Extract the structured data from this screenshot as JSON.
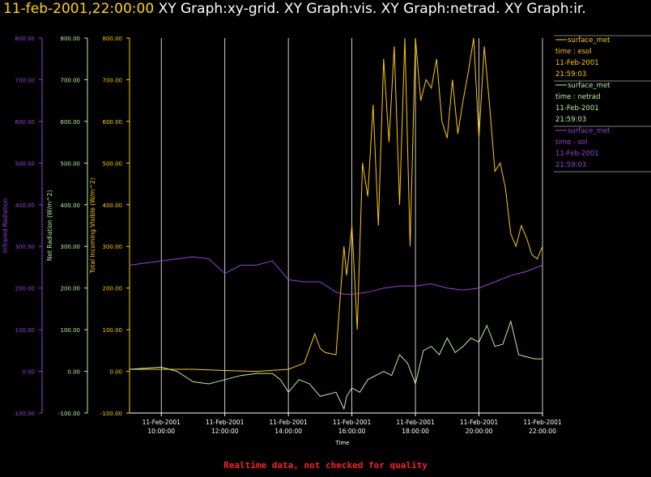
{
  "header": {
    "timestamp": "11-feb-2001,22:00:00",
    "graphs": "XY Graph:xy-grid.  XY Graph:vis.  XY Graph:netrad.  XY Graph:ir."
  },
  "footer": {
    "note": "Realtime data, not checked for quality",
    "color": "#ff2020"
  },
  "colors": {
    "visible": "#ffcc00",
    "netrad": "#b8f0a0",
    "ir": "#9a40e0",
    "grid": "#ffffff"
  },
  "chart_data": {
    "type": "line",
    "title": "",
    "xlabel": "Time",
    "x_range": [
      "11-Feb-2001 09:00:00",
      "11-Feb-2001 22:00:00"
    ],
    "x_ticks": [
      {
        "date": "11-Feb-2001",
        "time": "10:00:00"
      },
      {
        "date": "11-Feb-2001",
        "time": "12:00:00"
      },
      {
        "date": "11-Feb-2001",
        "time": "14:00:00"
      },
      {
        "date": "11-Feb-2001",
        "time": "16:00:00"
      },
      {
        "date": "11-Feb-2001",
        "time": "18:00:00"
      },
      {
        "date": "11-Feb-2001",
        "time": "20:00:00"
      },
      {
        "date": "11-Feb-2001",
        "time": "22:00:00"
      }
    ],
    "axes": [
      {
        "id": "ir",
        "label": "Infrared Radiation",
        "ylim": [
          -100,
          800
        ],
        "ticks": [
          "-100.00",
          "0.00",
          "100.00",
          "200.00",
          "300.00",
          "400.00",
          "500.00",
          "600.00",
          "700.00",
          "800.00"
        ]
      },
      {
        "id": "netrad",
        "label": "Net Radiation (W/m^2)",
        "ylim": [
          -100,
          800
        ],
        "ticks": [
          "-100.00",
          "0.00",
          "100.00",
          "200.00",
          "300.00",
          "400.00",
          "500.00",
          "600.00",
          "700.00",
          "800.00"
        ]
      },
      {
        "id": "visible",
        "label": "Total Incoming Visible (W/m^2)",
        "ylim": [
          -100,
          800
        ],
        "ticks": [
          "-100.00",
          "0.00",
          "100.00",
          "200.00",
          "300.00",
          "400.00",
          "500.00",
          "600.00",
          "700.00",
          "800.00"
        ]
      }
    ],
    "legend": [
      {
        "series": "visible",
        "lines": [
          "surface_met",
          "time : esol",
          "11-Feb-2001",
          "21:59:03"
        ]
      },
      {
        "series": "netrad",
        "lines": [
          "surface_met",
          "time : netrad",
          "11-Feb-2001",
          "21:59:03"
        ]
      },
      {
        "series": "ir",
        "lines": [
          "surface_met",
          "time : sol",
          "11-Feb-2001",
          "21:59:03"
        ]
      }
    ],
    "series": [
      {
        "id": "visible",
        "axis": "visible",
        "x": [
          "09:00",
          "10:00",
          "11:00",
          "12:00",
          "13:00",
          "14:00",
          "14:30",
          "14:50",
          "15:00",
          "15:10",
          "15:30",
          "15:45",
          "15:50",
          "16:00",
          "16:10",
          "16:20",
          "16:30",
          "16:40",
          "16:50",
          "17:00",
          "17:10",
          "17:20",
          "17:30",
          "17:40",
          "17:50",
          "18:00",
          "18:10",
          "18:20",
          "18:30",
          "18:40",
          "18:50",
          "19:00",
          "19:10",
          "19:20",
          "19:30",
          "19:40",
          "19:50",
          "20:00",
          "20:10",
          "20:20",
          "20:30",
          "20:40",
          "20:50",
          "21:00",
          "21:10",
          "21:20",
          "21:30",
          "21:40",
          "21:50",
          "22:00"
        ],
        "y": [
          5,
          5,
          5,
          2,
          0,
          5,
          20,
          90,
          55,
          45,
          40,
          300,
          230,
          350,
          100,
          500,
          420,
          640,
          350,
          750,
          550,
          780,
          400,
          820,
          300,
          830,
          650,
          700,
          680,
          750,
          600,
          560,
          700,
          570,
          650,
          720,
          800,
          560,
          780,
          640,
          480,
          500,
          440,
          330,
          300,
          350,
          320,
          280,
          270,
          300
        ]
      },
      {
        "id": "netrad",
        "axis": "netrad",
        "x": [
          "09:00",
          "10:00",
          "10:30",
          "11:00",
          "11:30",
          "12:00",
          "12:30",
          "13:00",
          "13:30",
          "13:45",
          "14:00",
          "14:20",
          "14:40",
          "15:00",
          "15:30",
          "15:45",
          "15:50",
          "16:00",
          "16:15",
          "16:30",
          "16:45",
          "17:00",
          "17:15",
          "17:30",
          "17:45",
          "18:00",
          "18:15",
          "18:30",
          "18:45",
          "19:00",
          "19:15",
          "19:30",
          "19:45",
          "20:00",
          "20:15",
          "20:30",
          "20:45",
          "21:00",
          "21:15",
          "21:30",
          "21:45",
          "22:00"
        ],
        "y": [
          5,
          10,
          0,
          -25,
          -30,
          -20,
          -10,
          -5,
          -5,
          -20,
          -50,
          -20,
          -30,
          -60,
          -50,
          -90,
          -60,
          -40,
          -50,
          -20,
          -10,
          0,
          -10,
          40,
          20,
          -30,
          50,
          60,
          40,
          80,
          45,
          60,
          80,
          70,
          110,
          60,
          65,
          120,
          40,
          35,
          30,
          30
        ]
      },
      {
        "id": "ir",
        "axis": "ir",
        "x": [
          "09:00",
          "10:00",
          "11:00",
          "11:30",
          "12:00",
          "12:30",
          "13:00",
          "13:30",
          "14:00",
          "14:30",
          "15:00",
          "15:30",
          "15:45",
          "16:00",
          "16:30",
          "17:00",
          "17:30",
          "18:00",
          "18:30",
          "19:00",
          "19:30",
          "20:00",
          "20:30",
          "21:00",
          "21:30",
          "22:00"
        ],
        "y": [
          255,
          265,
          275,
          270,
          235,
          255,
          255,
          265,
          220,
          215,
          215,
          190,
          185,
          185,
          190,
          200,
          205,
          205,
          210,
          200,
          195,
          200,
          215,
          230,
          240,
          255
        ]
      }
    ]
  }
}
